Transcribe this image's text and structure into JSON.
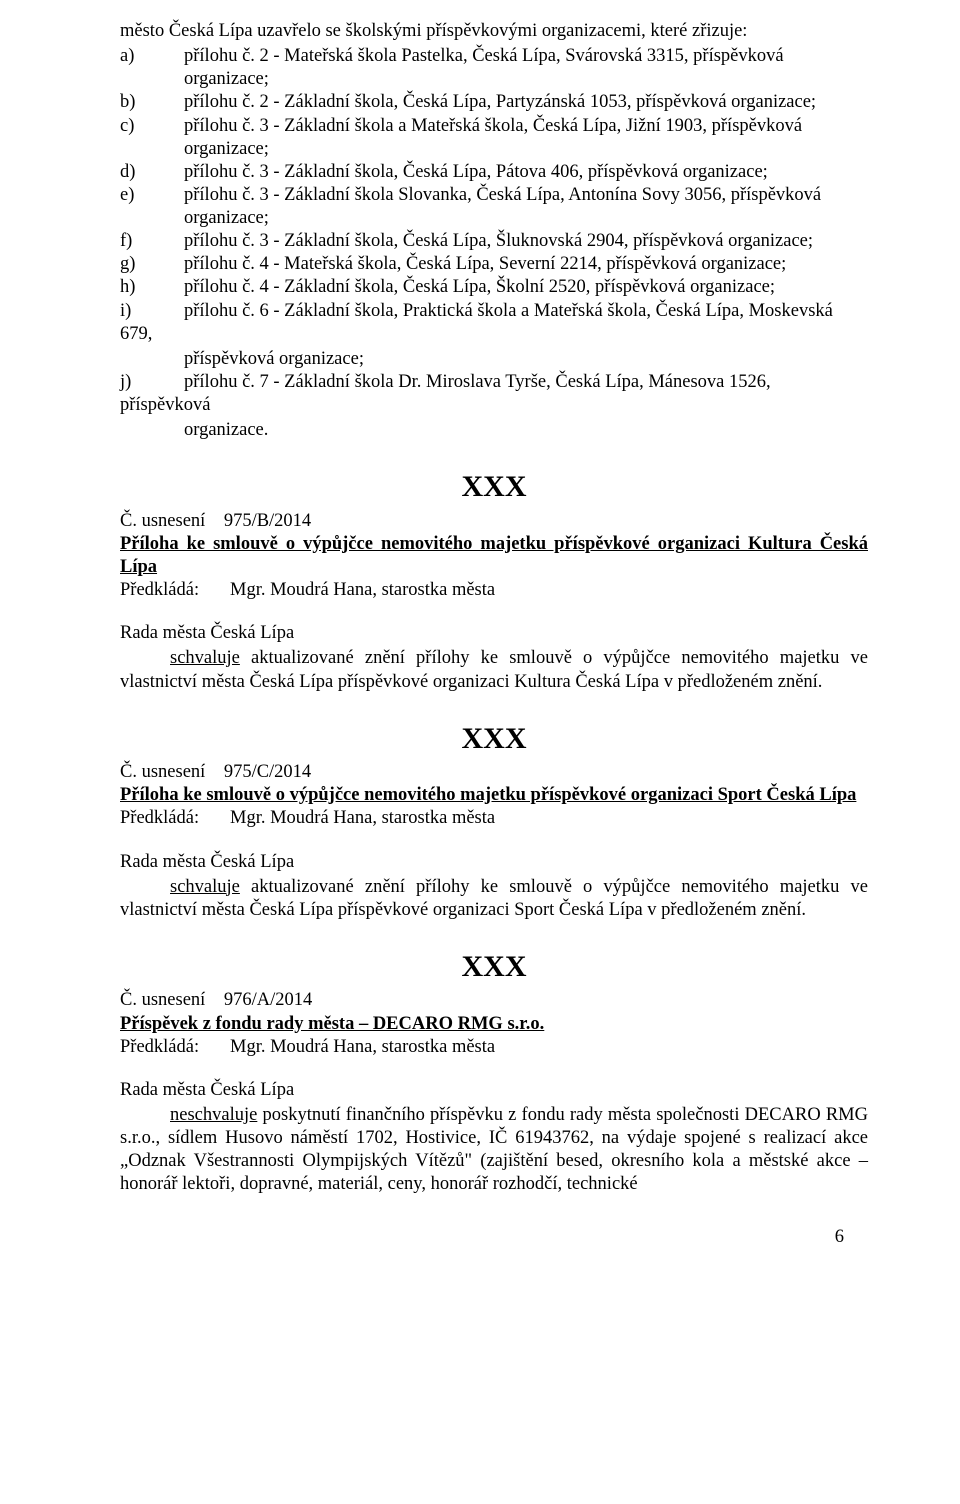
{
  "intro": "město Česká Lípa uzavřelo se školskými příspěvkovými organizacemi, které zřizuje:",
  "items": [
    {
      "label": "a)",
      "line1": "přílohu č. 2 - Mateřská škola Pastelka, Česká Lípa, Svárovská 3315, příspěvková",
      "cont": "organizace;"
    },
    {
      "label": "b)",
      "line1": "přílohu č. 2 - Základní škola, Česká Lípa, Partyzánská 1053, příspěvková organizace;",
      "cont": ""
    },
    {
      "label": "c)",
      "line1": "přílohu č. 3 - Základní škola a Mateřská škola, Česká Lípa, Jižní 1903, příspěvková",
      "cont": "organizace;"
    },
    {
      "label": "d)",
      "line1": "přílohu č. 3 - Základní škola, Česká Lípa, Pátova 406, příspěvková organizace;",
      "cont": ""
    },
    {
      "label": "e)",
      "line1": "přílohu č. 3 - Základní škola Slovanka, Česká Lípa, Antonína Sovy 3056, příspěvková",
      "cont": "organizace;"
    },
    {
      "label": "f)",
      "line1": "přílohu č. 3 - Základní škola, Česká Lípa, Šluknovská 2904, příspěvková organizace;",
      "cont": ""
    },
    {
      "label": "g)",
      "line1": "přílohu č. 4 - Mateřská škola, Česká Lípa, Severní 2214, příspěvková organizace;",
      "cont": ""
    },
    {
      "label": "h)",
      "line1": "přílohu č. 4 - Základní škola, Česká Lípa, Školní 2520, příspěvková organizace;",
      "cont": ""
    },
    {
      "label": "i)",
      "line1": "přílohu č. 6 - Základní škola, Praktická škola a Mateřská škola, Česká Lípa, Moskevská",
      "cont": ""
    }
  ],
  "i_tail1": "679,",
  "i_tail2": "příspěvková organizace;",
  "j_label": "j)",
  "j_line": "přílohu č. 7 - Základní škola Dr. Miroslava Tyrše, Česká Lípa, Mánesova 1526,",
  "j_tail1": "příspěvková",
  "j_tail2": "organizace.",
  "xxx": "XXX",
  "res_prefix": "Č. usnesení",
  "sections": [
    {
      "num": "975/B/2014",
      "heading": "Příloha ke smlouvě o výpůjčce nemovitého majetku příspěvkové organizaci Kultura Česká Lípa",
      "predklada_label": "Předkládá:",
      "predklada_name": "Mgr. Moudrá Hana, starostka města",
      "rada": "Rada města Česká Lípa",
      "action": "schvaluje",
      "body": " aktualizované znění přílohy ke smlouvě o výpůjčce nemovitého majetku ve vlastnictví města Česká Lípa příspěvkové organizaci Kultura Česká Lípa v předloženém znění."
    },
    {
      "num": "975/C/2014",
      "heading": "Příloha ke smlouvě o výpůjčce nemovitého majetku příspěvkové organizaci Sport Česká Lípa",
      "predklada_label": "Předkládá:",
      "predklada_name": "Mgr. Moudrá Hana, starostka města",
      "rada": "Rada města Česká Lípa",
      "action": "schvaluje",
      "body": " aktualizované znění přílohy ke smlouvě o výpůjčce nemovitého majetku ve vlastnictví města Česká Lípa příspěvkové organizaci Sport Česká Lípa v předloženém znění."
    },
    {
      "num": "976/A/2014",
      "heading": "Příspěvek z fondu rady města – DECARO RMG s.r.o.",
      "predklada_label": "Předkládá:",
      "predklada_name": "Mgr. Moudrá Hana, starostka města",
      "rada": "Rada města Česká Lípa",
      "action": "neschvaluje",
      "body": " poskytnutí finančního příspěvku z fondu rady města společnosti DECARO RMG s.r.o., sídlem Husovo náměstí 1702, Hostivice, IČ 61943762, na výdaje spojené s realizací akce „Odznak Všestrannosti Olympijských Vítězů\" (zajištění besed, okresního kola a městské akce – honorář lektoři, dopravné, materiál, ceny, honorář rozhodčí, technické"
    }
  ],
  "page_number": "6"
}
